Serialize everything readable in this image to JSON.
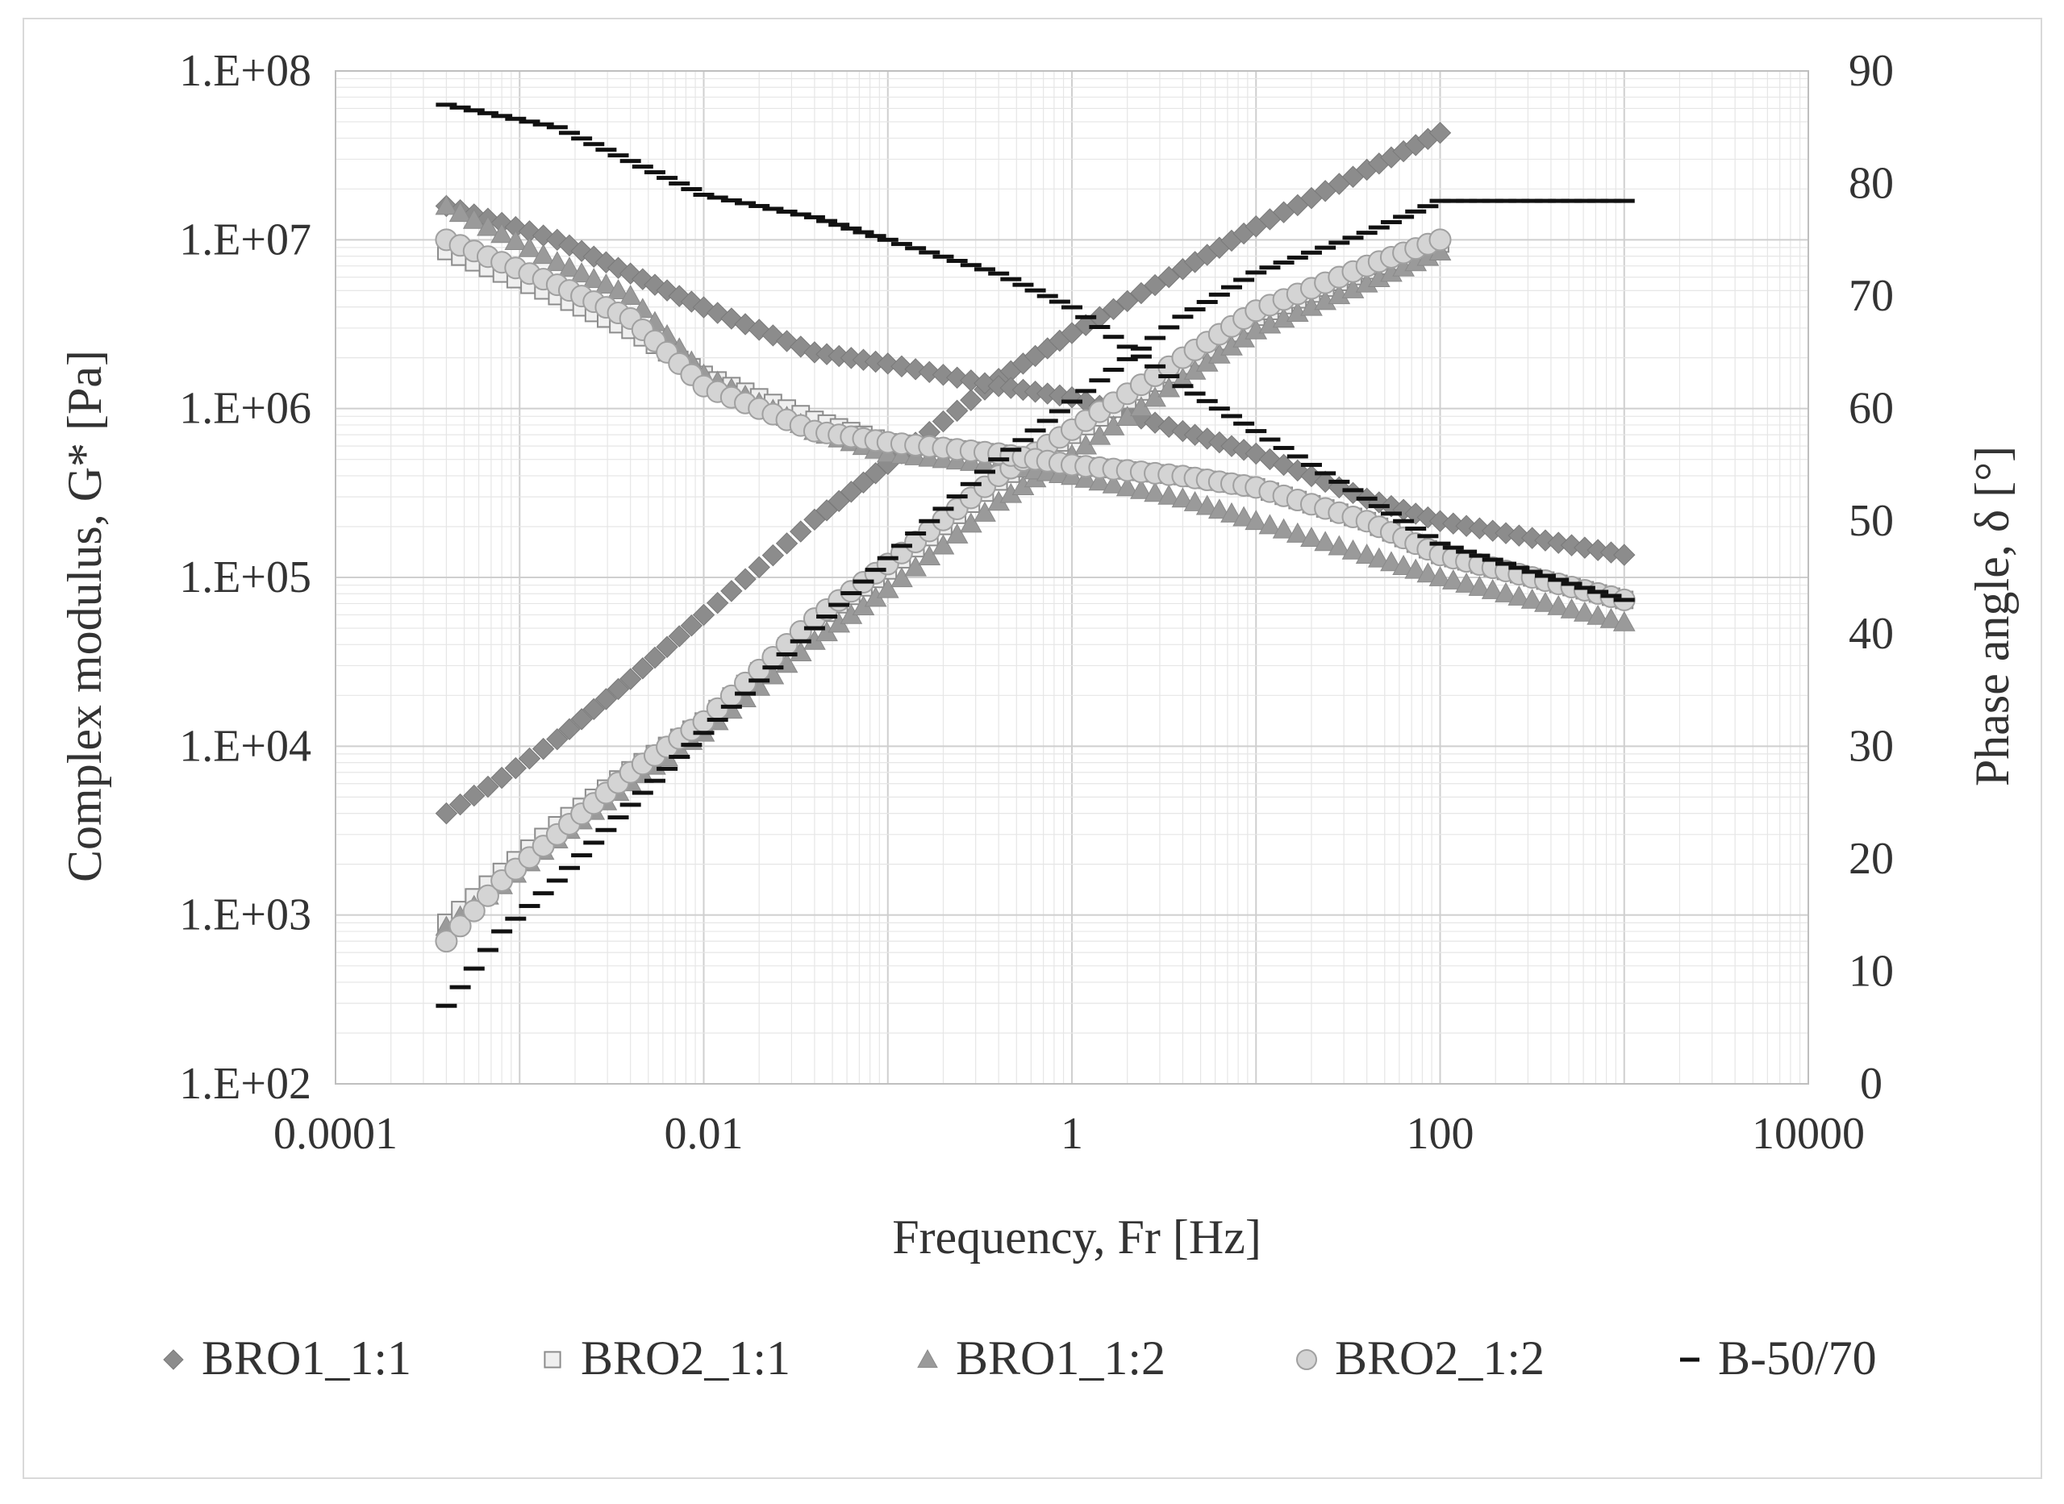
{
  "chart_data": {
    "type": "scatter",
    "title": "",
    "xlabel": "Frequency, Fr [Hz]",
    "ylabel_left": "Complex modulus, G* [Pa]",
    "ylabel_right": "Phase angle, δ [°]",
    "x_scale": "log",
    "y_left_scale": "log",
    "xlim": [
      0.0001,
      10000
    ],
    "ylim_left": [
      100,
      100000000
    ],
    "ylim_right": [
      0,
      90
    ],
    "x_ticks": [
      "0.0001",
      "0.01",
      "1",
      "100",
      "10000"
    ],
    "y_left_ticks": [
      "1.E+02",
      "1.E+03",
      "1.E+04",
      "1.E+05",
      "1.E+06",
      "1.E+07",
      "1.E+08"
    ],
    "y_right_ticks": [
      "0",
      "10",
      "20",
      "30",
      "40",
      "50",
      "60",
      "70",
      "80",
      "90"
    ],
    "grid": true,
    "legend_position": "bottom",
    "series": [
      {
        "name": "BRO1_1:1",
        "marker": "diamond",
        "color": "#8c8c8c",
        "complex_modulus": [
          {
            "x": 0.0004,
            "y": 4000
          },
          {
            "x": 0.0008,
            "y": 6500
          },
          {
            "x": 0.0016,
            "y": 11000
          },
          {
            "x": 0.004,
            "y": 25000
          },
          {
            "x": 0.01,
            "y": 60000
          },
          {
            "x": 0.04,
            "y": 220000
          },
          {
            "x": 0.1,
            "y": 470000
          },
          {
            "x": 0.4,
            "y": 1500000
          },
          {
            "x": 1,
            "y": 2800000
          },
          {
            "x": 4,
            "y": 6700000
          },
          {
            "x": 10,
            "y": 12000000
          },
          {
            "x": 40,
            "y": 26000000
          },
          {
            "x": 100,
            "y": 43000000
          }
        ],
        "phase_angle": [
          {
            "x": 0.0004,
            "y": 78
          },
          {
            "x": 0.0016,
            "y": 75
          },
          {
            "x": 0.004,
            "y": 72
          },
          {
            "x": 0.01,
            "y": 69
          },
          {
            "x": 0.04,
            "y": 65
          },
          {
            "x": 0.1,
            "y": 64
          },
          {
            "x": 0.4,
            "y": 62
          },
          {
            "x": 1,
            "y": 61
          },
          {
            "x": 4,
            "y": 58
          },
          {
            "x": 10,
            "y": 56
          },
          {
            "x": 40,
            "y": 52
          },
          {
            "x": 100,
            "y": 50
          },
          {
            "x": 1000,
            "y": 47
          }
        ]
      },
      {
        "name": "BRO2_1:1",
        "marker": "square",
        "color": "#bfbfbf",
        "complex_modulus": [
          {
            "x": 0.0004,
            "y": 900
          },
          {
            "x": 0.0008,
            "y": 1800
          },
          {
            "x": 0.0016,
            "y": 3400
          },
          {
            "x": 0.004,
            "y": 7200
          },
          {
            "x": 0.01,
            "y": 14000
          },
          {
            "x": 0.04,
            "y": 55000
          },
          {
            "x": 0.1,
            "y": 110000
          },
          {
            "x": 0.4,
            "y": 370000
          },
          {
            "x": 1,
            "y": 700000
          },
          {
            "x": 4,
            "y": 1800000
          },
          {
            "x": 10,
            "y": 3500000
          },
          {
            "x": 40,
            "y": 6600000
          },
          {
            "x": 100,
            "y": 9500000
          }
        ],
        "phase_angle": [
          {
            "x": 0.0004,
            "y": 74
          },
          {
            "x": 0.0016,
            "y": 70
          },
          {
            "x": 0.004,
            "y": 67
          },
          {
            "x": 0.01,
            "y": 63
          },
          {
            "x": 0.04,
            "y": 59
          },
          {
            "x": 0.1,
            "y": 57
          },
          {
            "x": 0.4,
            "y": 56
          },
          {
            "x": 1,
            "y": 55
          },
          {
            "x": 4,
            "y": 54
          },
          {
            "x": 10,
            "y": 53
          },
          {
            "x": 40,
            "y": 50
          },
          {
            "x": 100,
            "y": 47
          },
          {
            "x": 1000,
            "y": 43
          }
        ]
      },
      {
        "name": "BRO1_1:2",
        "marker": "triangle",
        "color": "#9a9a9a",
        "complex_modulus": [
          {
            "x": 0.0004,
            "y": 850
          },
          {
            "x": 0.0008,
            "y": 1500
          },
          {
            "x": 0.0016,
            "y": 2800
          },
          {
            "x": 0.004,
            "y": 6100
          },
          {
            "x": 0.01,
            "y": 12000
          },
          {
            "x": 0.04,
            "y": 42000
          },
          {
            "x": 0.1,
            "y": 85000
          },
          {
            "x": 0.4,
            "y": 280000
          },
          {
            "x": 1,
            "y": 530000
          },
          {
            "x": 4,
            "y": 1500000
          },
          {
            "x": 10,
            "y": 2900000
          },
          {
            "x": 40,
            "y": 5500000
          },
          {
            "x": 100,
            "y": 8500000
          }
        ],
        "phase_angle": [
          {
            "x": 0.0004,
            "y": 78
          },
          {
            "x": 0.0016,
            "y": 73
          },
          {
            "x": 0.004,
            "y": 70
          },
          {
            "x": 0.01,
            "y": 63
          },
          {
            "x": 0.04,
            "y": 58
          },
          {
            "x": 0.1,
            "y": 56
          },
          {
            "x": 0.4,
            "y": 55
          },
          {
            "x": 1,
            "y": 54
          },
          {
            "x": 4,
            "y": 52
          },
          {
            "x": 10,
            "y": 50
          },
          {
            "x": 40,
            "y": 47
          },
          {
            "x": 100,
            "y": 45
          },
          {
            "x": 1000,
            "y": 41
          }
        ]
      },
      {
        "name": "BRO2_1:2",
        "marker": "circle",
        "color": "#d4d4d4",
        "complex_modulus": [
          {
            "x": 0.0004,
            "y": 700
          },
          {
            "x": 0.0008,
            "y": 1600
          },
          {
            "x": 0.0016,
            "y": 3000
          },
          {
            "x": 0.004,
            "y": 7000
          },
          {
            "x": 0.01,
            "y": 14000
          },
          {
            "x": 0.04,
            "y": 57000
          },
          {
            "x": 0.1,
            "y": 120000
          },
          {
            "x": 0.4,
            "y": 400000
          },
          {
            "x": 1,
            "y": 750000
          },
          {
            "x": 4,
            "y": 2000000
          },
          {
            "x": 10,
            "y": 3800000
          },
          {
            "x": 40,
            "y": 7000000
          },
          {
            "x": 100,
            "y": 10000000
          }
        ],
        "phase_angle": [
          {
            "x": 0.0004,
            "y": 75
          },
          {
            "x": 0.0016,
            "y": 71
          },
          {
            "x": 0.004,
            "y": 68
          },
          {
            "x": 0.01,
            "y": 62
          },
          {
            "x": 0.04,
            "y": 58
          },
          {
            "x": 0.1,
            "y": 57
          },
          {
            "x": 0.4,
            "y": 56
          },
          {
            "x": 1,
            "y": 55
          },
          {
            "x": 4,
            "y": 54
          },
          {
            "x": 10,
            "y": 53
          },
          {
            "x": 40,
            "y": 50
          },
          {
            "x": 100,
            "y": 47
          },
          {
            "x": 1000,
            "y": 43
          }
        ]
      },
      {
        "name": "B-50/70",
        "marker": "dash",
        "color": "#111111",
        "complex_modulus": [
          {
            "x": 0.0004,
            "y": 290
          },
          {
            "x": 0.0008,
            "y": 800
          },
          {
            "x": 0.0016,
            "y": 1600
          },
          {
            "x": 0.004,
            "y": 4500
          },
          {
            "x": 0.01,
            "y": 12000
          },
          {
            "x": 0.04,
            "y": 50000
          },
          {
            "x": 0.1,
            "y": 130000
          },
          {
            "x": 0.4,
            "y": 500000
          },
          {
            "x": 1,
            "y": 1100000
          },
          {
            "x": 4,
            "y": 3500000
          },
          {
            "x": 10,
            "y": 6400000
          },
          {
            "x": 40,
            "y": 11000000
          },
          {
            "x": 100,
            "y": 17000000
          },
          {
            "x": 1000,
            "y": 17000000
          }
        ],
        "phase_angle": [
          {
            "x": 0.0004,
            "y": 87
          },
          {
            "x": 0.0016,
            "y": 85
          },
          {
            "x": 0.004,
            "y": 82
          },
          {
            "x": 0.01,
            "y": 79
          },
          {
            "x": 0.04,
            "y": 77
          },
          {
            "x": 0.1,
            "y": 75
          },
          {
            "x": 0.4,
            "y": 72
          },
          {
            "x": 1,
            "y": 69
          },
          {
            "x": 4,
            "y": 62
          },
          {
            "x": 10,
            "y": 58
          },
          {
            "x": 40,
            "y": 52
          },
          {
            "x": 100,
            "y": 48
          },
          {
            "x": 1000,
            "y": 43
          }
        ]
      }
    ]
  }
}
